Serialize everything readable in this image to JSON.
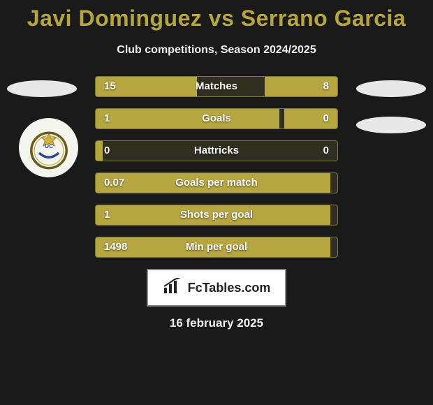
{
  "title": "Javi Dominguez vs Serrano Garcia",
  "subtitle": "Club competitions, Season 2024/2025",
  "colors": {
    "accent": "#b5a642",
    "track_bg": "rgba(181,166,66,0.15)",
    "track_border": "rgba(181,166,66,0.6)",
    "text_light": "#f0f0f0",
    "page_bg": "#1a1a1a"
  },
  "stats": [
    {
      "name": "Matches",
      "left_val": "15",
      "right_val": "8",
      "left_pct": 42,
      "right_pct": 30
    },
    {
      "name": "Goals",
      "left_val": "1",
      "right_val": "0",
      "left_pct": 76,
      "right_pct": 22
    },
    {
      "name": "Hattricks",
      "left_val": "0",
      "right_val": "0",
      "left_pct": 3,
      "right_pct": 0
    },
    {
      "name": "Goals per match",
      "left_val": "0.07",
      "right_val": "",
      "left_pct": 97,
      "right_pct": 0
    },
    {
      "name": "Shots per goal",
      "left_val": "1",
      "right_val": "",
      "left_pct": 97,
      "right_pct": 0
    },
    {
      "name": "Min per goal",
      "left_val": "1498",
      "right_val": "",
      "left_pct": 97,
      "right_pct": 0
    }
  ],
  "brand": "FcTables.com",
  "date": "16 february 2025"
}
